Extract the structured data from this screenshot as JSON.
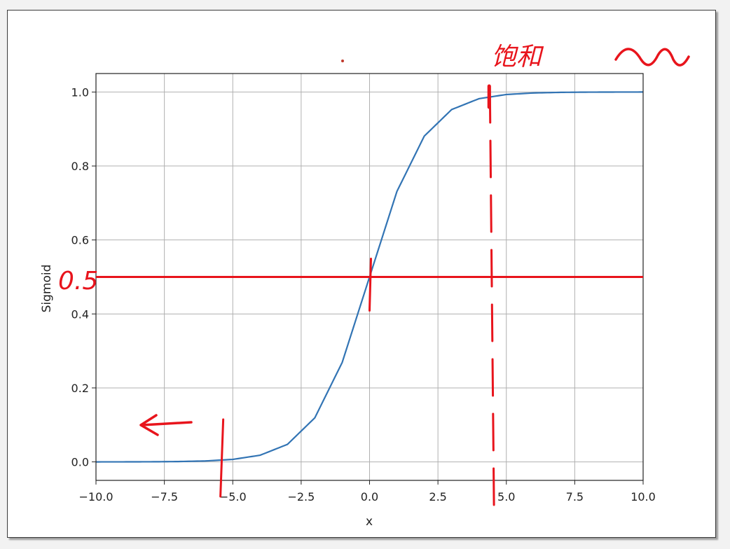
{
  "chart_data": {
    "type": "line",
    "xlabel": "x",
    "ylabel": "Sigmoid",
    "xlim": [
      -10.0,
      10.0
    ],
    "ylim": [
      -0.05,
      1.05
    ],
    "x_ticks": [
      -10.0,
      -7.5,
      -5.0,
      -2.5,
      0.0,
      2.5,
      5.0,
      7.5,
      10.0
    ],
    "x_tick_labels": [
      "−10.0",
      "−7.5",
      "−5.0",
      "−2.5",
      "0.0",
      "2.5",
      "5.0",
      "7.5",
      "10.0"
    ],
    "y_ticks": [
      0.0,
      0.2,
      0.4,
      0.6,
      0.8,
      1.0
    ],
    "y_tick_labels": [
      "0.0",
      "0.2",
      "0.4",
      "0.6",
      "0.8",
      "1.0"
    ],
    "grid": true,
    "series": [
      {
        "color": "#3274b4",
        "x": [
          -10,
          -9,
          -8,
          -7,
          -6,
          -5,
          -4,
          -3,
          -2,
          -1,
          0,
          1,
          2,
          3,
          4,
          5,
          6,
          7,
          8,
          9,
          10
        ],
        "y": [
          0.0,
          0.0001,
          0.0003,
          0.0009,
          0.0025,
          0.0067,
          0.018,
          0.0474,
          0.1192,
          0.2689,
          0.5,
          0.7311,
          0.8808,
          0.9526,
          0.982,
          0.9933,
          0.9975,
          0.9991,
          0.9997,
          0.9999,
          1.0
        ]
      }
    ]
  },
  "annotations": {
    "color": "#e8141c",
    "horizontal_line_y": 0.5,
    "label_0_5": "0.5",
    "saturation_text": "饱和",
    "saturation_x": 4.5,
    "center_tick_x": 0.0,
    "left_tick_x": -5.4
  }
}
